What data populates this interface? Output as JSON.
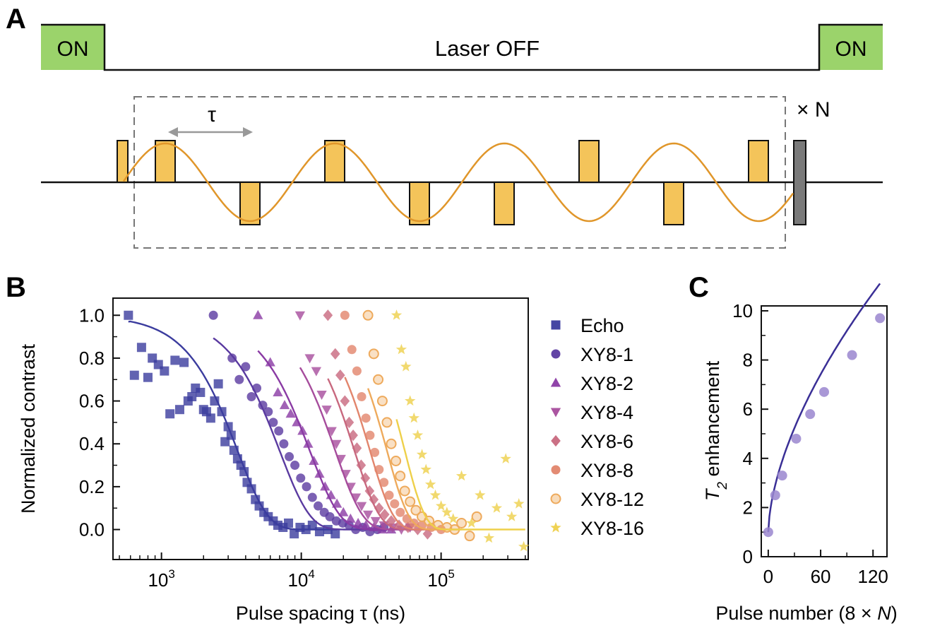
{
  "panelA": {
    "letter": "A",
    "laser_on_label": "ON",
    "laser_off_label": "Laser OFF",
    "tau_label": "τ",
    "repeat_label": "× N",
    "colors": {
      "laser_on": "#9bd36b",
      "pulse": "#f4c45a",
      "sine": "#e0962a",
      "final_pulse": "#7a7a7a"
    }
  },
  "panelB": {
    "letter": "B"
  },
  "panelC": {
    "letter": "C"
  },
  "chart_data": [
    {
      "type": "scatter",
      "panel": "B",
      "xlabel": "Pulse spacing τ (ns)",
      "ylabel": "Normalized contrast",
      "xscale": "log",
      "xlim": [
        450,
        420000
      ],
      "ylim": [
        -0.14,
        1.08
      ],
      "xticks": [
        {
          "value": 1000,
          "base": "10",
          "exp": "3"
        },
        {
          "value": 10000,
          "base": "10",
          "exp": "4"
        },
        {
          "value": 100000,
          "base": "10",
          "exp": "5"
        }
      ],
      "yticks": [
        {
          "value": 0.0,
          "label": "0.0"
        },
        {
          "value": 0.2,
          "label": "0.2"
        },
        {
          "value": 0.4,
          "label": "0.4"
        },
        {
          "value": 0.6,
          "label": "0.6"
        },
        {
          "value": 0.8,
          "label": "0.8"
        },
        {
          "value": 1.0,
          "label": "1.0"
        }
      ],
      "legend_position": "right",
      "series": [
        {
          "name": "Echo",
          "marker": "square",
          "color": "#3b3c9e",
          "T": 3500,
          "n": 2.0,
          "x_end": 18000,
          "points": [
            [
              580,
              1.0
            ],
            [
              640,
              0.72
            ],
            [
              720,
              0.85
            ],
            [
              800,
              0.71
            ],
            [
              860,
              0.8
            ],
            [
              950,
              0.77
            ],
            [
              1050,
              0.74
            ],
            [
              1150,
              0.54
            ],
            [
              1250,
              0.79
            ],
            [
              1350,
              0.56
            ],
            [
              1450,
              0.78
            ],
            [
              1550,
              0.6
            ],
            [
              1650,
              0.62
            ],
            [
              1750,
              0.66
            ],
            [
              1900,
              0.64
            ],
            [
              2000,
              0.56
            ],
            [
              2100,
              0.55
            ],
            [
              2250,
              0.52
            ],
            [
              2400,
              0.6
            ],
            [
              2550,
              0.68
            ],
            [
              2700,
              0.55
            ],
            [
              2850,
              0.41
            ],
            [
              3000,
              0.48
            ],
            [
              3150,
              0.44
            ],
            [
              3300,
              0.37
            ],
            [
              3500,
              0.33
            ],
            [
              3700,
              0.3
            ],
            [
              3900,
              0.27
            ],
            [
              4100,
              0.22
            ],
            [
              4400,
              0.19
            ],
            [
              4700,
              0.14
            ],
            [
              5000,
              0.11
            ],
            [
              5400,
              0.08
            ],
            [
              5800,
              0.06
            ],
            [
              6300,
              0.04
            ],
            [
              6800,
              0.02
            ],
            [
              7400,
              0.01
            ],
            [
              8100,
              0.03
            ],
            [
              8900,
              -0.02
            ],
            [
              9800,
              0.01
            ],
            [
              10800,
              0.0
            ],
            [
              12000,
              0.02
            ],
            [
              13500,
              -0.01
            ],
            [
              15500,
              0.0
            ],
            [
              17500,
              -0.02
            ]
          ]
        },
        {
          "name": "XY8-1",
          "marker": "circle",
          "color": "#5a3aa0",
          "T": 7000,
          "n": 2.0,
          "x_end": 40000,
          "points": [
            [
              2350,
              1.0
            ],
            [
              3200,
              0.8
            ],
            [
              3600,
              0.7
            ],
            [
              4000,
              0.76
            ],
            [
              4400,
              0.62
            ],
            [
              4800,
              0.66
            ],
            [
              5300,
              0.58
            ],
            [
              5800,
              0.55
            ],
            [
              6300,
              0.5
            ],
            [
              6900,
              0.46
            ],
            [
              7500,
              0.4
            ],
            [
              8200,
              0.34
            ],
            [
              9000,
              0.3
            ],
            [
              9900,
              0.24
            ],
            [
              10900,
              0.2
            ],
            [
              12000,
              0.15
            ],
            [
              13200,
              0.11
            ],
            [
              14600,
              0.08
            ],
            [
              16000,
              0.06
            ],
            [
              17800,
              0.04
            ],
            [
              19800,
              0.03
            ],
            [
              22000,
              0.02
            ],
            [
              24500,
              0.0
            ],
            [
              27500,
              0.01
            ],
            [
              31000,
              -0.01
            ],
            [
              35000,
              0.0
            ],
            [
              39000,
              0.01
            ]
          ]
        },
        {
          "name": "XY8-2",
          "marker": "triangle-up",
          "color": "#8a3aa4",
          "T": 11500,
          "n": 2.0,
          "x_end": 50000,
          "points": [
            [
              4900,
              1.0
            ],
            [
              6000,
              0.78
            ],
            [
              6800,
              0.64
            ],
            [
              7600,
              0.58
            ],
            [
              8400,
              0.54
            ],
            [
              9300,
              0.5
            ],
            [
              10200,
              0.46
            ],
            [
              11200,
              0.4
            ],
            [
              12300,
              0.32
            ],
            [
              13500,
              0.26
            ],
            [
              14800,
              0.2
            ],
            [
              16300,
              0.16
            ],
            [
              18000,
              0.12
            ],
            [
              20000,
              0.08
            ],
            [
              22500,
              0.05
            ],
            [
              25500,
              0.03
            ],
            [
              29000,
              0.02
            ],
            [
              33000,
              0.01
            ],
            [
              38000,
              0.0
            ],
            [
              44000,
              0.0
            ]
          ]
        },
        {
          "name": "XY8-4",
          "marker": "triangle-down",
          "color": "#a64c9c",
          "T": 17500,
          "n": 2.2,
          "x_end": 70000,
          "points": [
            [
              9800,
              1.0
            ],
            [
              11500,
              0.8
            ],
            [
              12800,
              0.74
            ],
            [
              14000,
              0.63
            ],
            [
              15200,
              0.56
            ],
            [
              16500,
              0.46
            ],
            [
              17800,
              0.4
            ],
            [
              19200,
              0.33
            ],
            [
              20800,
              0.26
            ],
            [
              22600,
              0.2
            ],
            [
              24600,
              0.15
            ],
            [
              27000,
              0.11
            ],
            [
              30000,
              0.07
            ],
            [
              34000,
              0.04
            ],
            [
              39000,
              0.02
            ],
            [
              45000,
              0.01
            ],
            [
              52000,
              0.0
            ],
            [
              60000,
              0.01
            ]
          ]
        },
        {
          "name": "XY8-6",
          "marker": "diamond",
          "color": "#c8687e",
          "T": 24000,
          "n": 2.4,
          "x_end": 85000,
          "points": [
            [
              15500,
              1.0
            ],
            [
              17500,
              0.82
            ],
            [
              19000,
              0.72
            ],
            [
              20500,
              0.6
            ],
            [
              22000,
              0.5
            ],
            [
              23500,
              0.44
            ],
            [
              25000,
              0.38
            ],
            [
              26800,
              0.3
            ],
            [
              28700,
              0.24
            ],
            [
              30800,
              0.18
            ],
            [
              33000,
              0.14
            ],
            [
              36000,
              0.1
            ],
            [
              39500,
              0.07
            ],
            [
              44000,
              0.04
            ],
            [
              50000,
              0.02
            ],
            [
              58000,
              0.01
            ],
            [
              68000,
              0.0
            ],
            [
              80000,
              -0.02
            ]
          ]
        },
        {
          "name": "XY8-8",
          "marker": "circle",
          "color": "#e2856c",
          "T": 31000,
          "n": 2.6,
          "x_end": 110000,
          "points": [
            [
              20500,
              1.0
            ],
            [
              23000,
              0.84
            ],
            [
              25000,
              0.74
            ],
            [
              27000,
              0.62
            ],
            [
              29000,
              0.52
            ],
            [
              31000,
              0.44
            ],
            [
              33500,
              0.36
            ],
            [
              36000,
              0.28
            ],
            [
              39000,
              0.22
            ],
            [
              42500,
              0.16
            ],
            [
              46500,
              0.12
            ],
            [
              51000,
              0.08
            ],
            [
              57000,
              0.05
            ],
            [
              64000,
              0.03
            ],
            [
              73000,
              0.02
            ],
            [
              85000,
              0.01
            ],
            [
              100000,
              0.0
            ]
          ]
        },
        {
          "name": "XY8-12",
          "marker": "circle-hollow",
          "color": "#eeaa5c",
          "T": 41000,
          "n": 2.8,
          "x_end": 140000,
          "points": [
            [
              30000,
              1.0
            ],
            [
              33000,
              0.82
            ],
            [
              35500,
              0.7
            ],
            [
              38000,
              0.6
            ],
            [
              41000,
              0.5
            ],
            [
              44000,
              0.4
            ],
            [
              47500,
              0.32
            ],
            [
              51000,
              0.25
            ],
            [
              55000,
              0.18
            ],
            [
              60000,
              0.13
            ],
            [
              66000,
              0.09
            ],
            [
              73000,
              0.06
            ],
            [
              82000,
              0.04
            ],
            [
              95000,
              0.02
            ],
            [
              110000,
              0.01
            ],
            [
              125000,
              0.0
            ],
            [
              140000,
              0.03
            ],
            [
              160000,
              -0.03
            ],
            [
              180000,
              0.06
            ]
          ]
        },
        {
          "name": "XY8-16",
          "marker": "star",
          "color": "#eed04a",
          "T": 55000,
          "n": 3.0,
          "x_end": 400000,
          "points": [
            [
              48000,
              1.0
            ],
            [
              52000,
              0.84
            ],
            [
              56000,
              0.76
            ],
            [
              60000,
              0.6
            ],
            [
              64000,
              0.52
            ],
            [
              68000,
              0.44
            ],
            [
              73000,
              0.35
            ],
            [
              78000,
              0.28
            ],
            [
              84000,
              0.21
            ],
            [
              91000,
              0.16
            ],
            [
              100000,
              0.11
            ],
            [
              110000,
              0.08
            ],
            [
              122000,
              0.05
            ],
            [
              140000,
              0.25
            ],
            [
              165000,
              0.03
            ],
            [
              190000,
              0.16
            ],
            [
              220000,
              -0.04
            ],
            [
              250000,
              0.1
            ],
            [
              290000,
              0.33
            ],
            [
              320000,
              0.06
            ],
            [
              360000,
              0.12
            ],
            [
              390000,
              -0.08
            ]
          ]
        }
      ]
    },
    {
      "type": "scatter",
      "panel": "C",
      "xlabel_prefix": "Pulse number (8 × ",
      "xlabel_var": "N",
      "xlabel_suffix": ")",
      "ylabel_var": "T",
      "ylabel_sub": "2",
      "ylabel_rest": " enhancement",
      "xlim": [
        -8,
        136
      ],
      "ylim": [
        0,
        10.2
      ],
      "xticks": [
        {
          "value": 0,
          "label": "0"
        },
        {
          "value": 60,
          "label": "60"
        },
        {
          "value": 120,
          "label": "120"
        }
      ],
      "yticks": [
        {
          "value": 0,
          "label": "0"
        },
        {
          "value": 2,
          "label": "2"
        },
        {
          "value": 4,
          "label": "4"
        },
        {
          "value": 6,
          "label": "6"
        },
        {
          "value": 8,
          "label": "8"
        },
        {
          "value": 10,
          "label": "10"
        }
      ],
      "marker_color": "#9a86cf",
      "fit_color": "#3a2f96",
      "points": [
        [
          0,
          1.0
        ],
        [
          8,
          2.5
        ],
        [
          16,
          3.3
        ],
        [
          32,
          4.8
        ],
        [
          48,
          5.8
        ],
        [
          64,
          6.7
        ],
        [
          96,
          8.2
        ],
        [
          128,
          9.7
        ]
      ],
      "fit": {
        "a": 1.0,
        "b": 0.55,
        "p": 0.6
      }
    }
  ]
}
